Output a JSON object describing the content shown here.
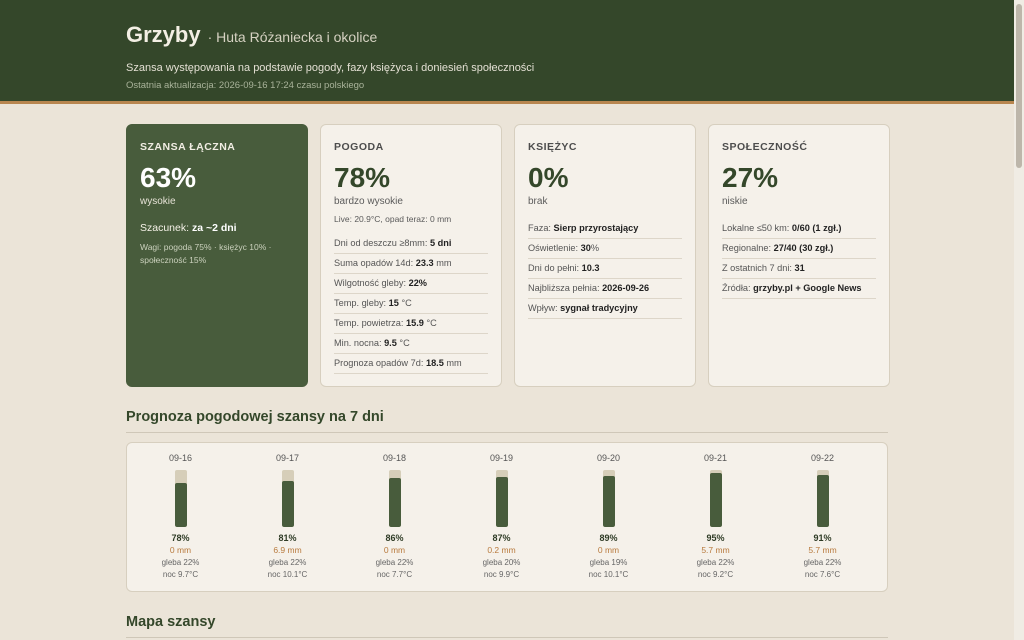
{
  "header": {
    "title": "Grzyby",
    "location": "· Huta Różaniecka i okolice",
    "subtitle": "Szansa występowania na podstawie pogody, fazy księżyca i doniesień społeczności",
    "updated": "Ostatnia aktualizacja: 2026-09-16 17:24 czasu polskiego"
  },
  "cards": {
    "total": {
      "title": "SZANSA ŁĄCZNA",
      "value": "63%",
      "level": "wysokie",
      "estimate_label": "Szacunek:",
      "estimate_value": "za ~2 dni",
      "weights": "Wagi: pogoda 75% · księżyc 10% · społeczność 15%"
    },
    "weather": {
      "title": "POGODA",
      "value": "78%",
      "level": "bardzo wysokie",
      "live": "Live: 20.9°C, opad teraz: 0 mm",
      "rows": [
        {
          "label": "Dni od deszczu ≥8mm:",
          "value": "5 dni",
          "unit": ""
        },
        {
          "label": "Suma opadów 14d:",
          "value": "23.3",
          "unit": "mm"
        },
        {
          "label": "Wilgotność gleby:",
          "value": "22%",
          "unit": ""
        },
        {
          "label": "Temp. gleby:",
          "value": "15",
          "unit": "°C"
        },
        {
          "label": "Temp. powietrza:",
          "value": "15.9",
          "unit": "°C"
        },
        {
          "label": "Min. nocna:",
          "value": "9.5",
          "unit": "°C"
        },
        {
          "label": "Prognoza opadów 7d:",
          "value": "18.5",
          "unit": "mm"
        }
      ]
    },
    "moon": {
      "title": "KSIĘŻYC",
      "value": "0%",
      "level": "brak",
      "rows": [
        {
          "label": "Faza:",
          "value": "Sierp przyrostający",
          "unit": ""
        },
        {
          "label": "Oświetlenie:",
          "value": "30",
          "unit": "%"
        },
        {
          "label": "Dni do pełni:",
          "value": "10.3",
          "unit": ""
        },
        {
          "label": "Najbliższa pełnia:",
          "value": "2026-09-26",
          "unit": ""
        },
        {
          "label": "Wpływ:",
          "value": "sygnał tradycyjny",
          "unit": ""
        }
      ]
    },
    "community": {
      "title": "SPOŁECZNOŚĆ",
      "value": "27%",
      "level": "niskie",
      "rows": [
        {
          "label": "Lokalne ≤50 km:",
          "value": "0/60 (1 zgł.)",
          "unit": ""
        },
        {
          "label": "Regionalne:",
          "value": "27/40 (30 zgł.)",
          "unit": ""
        },
        {
          "label": "Z ostatnich 7 dni:",
          "value": "31",
          "unit": ""
        },
        {
          "label": "Źródła:",
          "value": "grzyby.pl + Google News",
          "unit": ""
        }
      ]
    }
  },
  "forecast": {
    "title": "Prognoza pogodowej szansy na 7 dni",
    "days": [
      {
        "date": "09-16",
        "pct": "78%",
        "fill": 0.78,
        "mm": "0 mm",
        "soil": "gleba 22%",
        "night": "noc 9.7°C"
      },
      {
        "date": "09-17",
        "pct": "81%",
        "fill": 0.81,
        "mm": "6.9 mm",
        "soil": "gleba 22%",
        "night": "noc 10.1°C"
      },
      {
        "date": "09-18",
        "pct": "86%",
        "fill": 0.86,
        "mm": "0 mm",
        "soil": "gleba 22%",
        "night": "noc 7.7°C"
      },
      {
        "date": "09-19",
        "pct": "87%",
        "fill": 0.87,
        "mm": "0.2 mm",
        "soil": "gleba 20%",
        "night": "noc 9.9°C"
      },
      {
        "date": "09-20",
        "pct": "89%",
        "fill": 0.89,
        "mm": "0 mm",
        "soil": "gleba 19%",
        "night": "noc 10.1°C"
      },
      {
        "date": "09-21",
        "pct": "95%",
        "fill": 0.95,
        "mm": "5.7 mm",
        "soil": "gleba 22%",
        "night": "noc 9.2°C"
      },
      {
        "date": "09-22",
        "pct": "91%",
        "fill": 0.91,
        "mm": "5.7 mm",
        "soil": "gleba 22%",
        "night": "noc 7.6°C"
      }
    ]
  },
  "map": {
    "title": "Mapa szansy"
  },
  "colors": {
    "header_bg": "#34472a",
    "accent_green": "#485c3c",
    "accent_orange": "#b8864f",
    "page_bg": "#ebe4d8"
  }
}
